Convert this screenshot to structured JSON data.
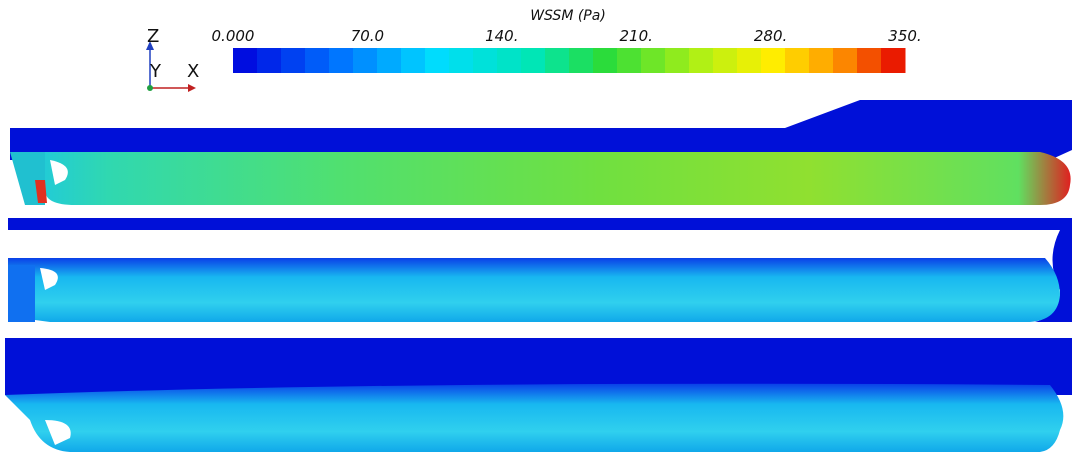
{
  "colorbar": {
    "title": "WSSM (Pa)",
    "lim": [
      0,
      350
    ],
    "ticks": [
      {
        "value": 0,
        "label": "0.000"
      },
      {
        "value": 70,
        "label": "70.0"
      },
      {
        "value": 140,
        "label": "140."
      },
      {
        "value": 210,
        "label": "210."
      },
      {
        "value": 280,
        "label": "280."
      },
      {
        "value": 350,
        "label": "350."
      }
    ]
  },
  "axes": {
    "z": "Z",
    "y": "Y",
    "x": "X"
  }
}
